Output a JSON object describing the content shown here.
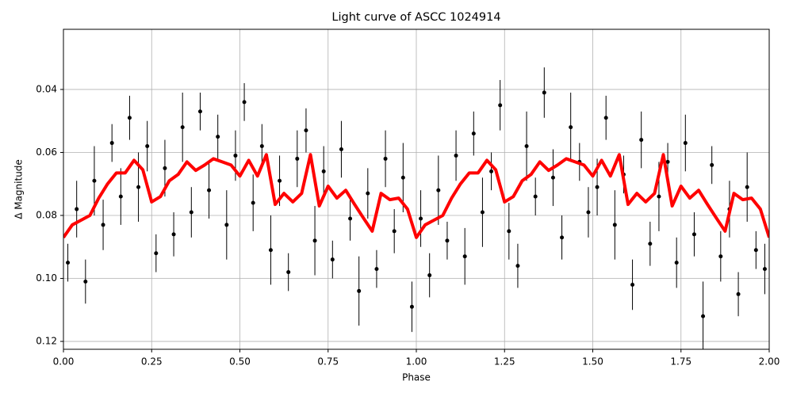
{
  "chart_data": {
    "type": "scatter",
    "title": "Light curve of ASCC 1024914",
    "xlabel": "Phase",
    "ylabel": "Δ Magnitude",
    "xlim": [
      0,
      2
    ],
    "ylim": [
      0.1225,
      0.0209
    ],
    "xticks": [
      {
        "value": 0,
        "label": "0.00"
      },
      {
        "value": 0.25,
        "label": "0.25"
      },
      {
        "value": 0.5,
        "label": "0.50"
      },
      {
        "value": 0.75,
        "label": "0.75"
      },
      {
        "value": 1,
        "label": "1.00"
      },
      {
        "value": 1.25,
        "label": "1.25"
      },
      {
        "value": 1.5,
        "label": "1.50"
      },
      {
        "value": 1.75,
        "label": "1.75"
      },
      {
        "value": 2,
        "label": "2.00"
      }
    ],
    "yticks": [
      0.04,
      0.06,
      {
        "value": 0.08,
        "label": "0.08"
      },
      {
        "value": 0.1,
        "label": "0.10"
      },
      0.12
    ],
    "grid": true,
    "points": {
      "color": "#000000",
      "x": [
        0.0125,
        0.0375,
        0.0625,
        0.0875,
        0.1125,
        0.1375,
        0.1625,
        0.1875,
        0.2125,
        0.2375,
        0.2625,
        0.2875,
        0.3125,
        0.3375,
        0.3625,
        0.3875,
        0.4125,
        0.4375,
        0.4625,
        0.4875,
        0.5125,
        0.5375,
        0.5625,
        0.5875,
        0.6125,
        0.6375,
        0.6625,
        0.6875,
        0.7125,
        0.7375,
        0.7625,
        0.7875,
        0.8125,
        0.8375,
        0.8625,
        0.8875,
        0.9125,
        0.9375,
        0.9625,
        0.9875,
        1.0125,
        1.0375,
        1.0625,
        1.0875,
        1.1125,
        1.1375,
        1.1625,
        1.1875,
        1.2125,
        1.2375,
        1.2625,
        1.2875,
        1.3125,
        1.3375,
        1.3625,
        1.3875,
        1.4125,
        1.4375,
        1.4625,
        1.4875,
        1.5125,
        1.5375,
        1.5625,
        1.5875,
        1.6125,
        1.6375,
        1.6625,
        1.6875,
        1.7125,
        1.7375,
        1.7625,
        1.7875,
        1.8125,
        1.8375,
        1.8625,
        1.8875,
        1.9125,
        1.9375,
        1.9625,
        1.9875
      ],
      "values": [
        0.095,
        0.078,
        0.101,
        0.069,
        0.083,
        0.057,
        0.074,
        0.049,
        0.071,
        0.058,
        0.092,
        0.065,
        0.086,
        0.052,
        0.079,
        0.047,
        0.072,
        0.055,
        0.083,
        0.061,
        0.044,
        0.076,
        0.058,
        0.091,
        0.069,
        0.098,
        0.062,
        0.053,
        0.088,
        0.066,
        0.094,
        0.059,
        0.081,
        0.104,
        0.073,
        0.097,
        0.062,
        0.085,
        0.068,
        0.109,
        0.081,
        0.099,
        0.072,
        0.088,
        0.061,
        0.093,
        0.054,
        0.079,
        0.066,
        0.045,
        0.085,
        0.096,
        0.058,
        0.074,
        0.041,
        0.068,
        0.087,
        0.052,
        0.063,
        0.079,
        0.071,
        0.049,
        0.083,
        0.067,
        0.102,
        0.056,
        0.089,
        0.074,
        0.063,
        0.095,
        0.057,
        0.086,
        0.112,
        0.064,
        0.093,
        0.078,
        0.105,
        0.071,
        0.091,
        0.097
      ],
      "errors": [
        0.006,
        0.009,
        0.007,
        0.011,
        0.008,
        0.006,
        0.009,
        0.007,
        0.011,
        0.008,
        0.006,
        0.009,
        0.007,
        0.011,
        0.008,
        0.006,
        0.009,
        0.007,
        0.011,
        0.008,
        0.006,
        0.009,
        0.007,
        0.011,
        0.008,
        0.006,
        0.009,
        0.007,
        0.011,
        0.008,
        0.006,
        0.009,
        0.007,
        0.011,
        0.008,
        0.006,
        0.009,
        0.007,
        0.011,
        0.008,
        0.009,
        0.007,
        0.011,
        0.006,
        0.008,
        0.009,
        0.007,
        0.011,
        0.006,
        0.008,
        0.009,
        0.007,
        0.011,
        0.006,
        0.008,
        0.009,
        0.007,
        0.011,
        0.006,
        0.008,
        0.009,
        0.007,
        0.011,
        0.006,
        0.008,
        0.009,
        0.007,
        0.011,
        0.006,
        0.008,
        0.009,
        0.007,
        0.011,
        0.006,
        0.008,
        0.009,
        0.007,
        0.011,
        0.006,
        0.008
      ]
    },
    "curve": {
      "color": "#ff0000",
      "x": [
        0,
        0.025,
        0.05,
        0.075,
        0.1,
        0.125,
        0.15,
        0.175,
        0.2,
        0.225,
        0.25,
        0.275,
        0.3,
        0.325,
        0.35,
        0.375,
        0.4,
        0.425,
        0.45,
        0.475,
        0.5,
        0.525,
        0.55,
        0.575,
        0.6,
        0.625,
        0.65,
        0.675,
        0.7,
        0.725,
        0.75,
        0.775,
        0.8,
        0.825,
        0.85,
        0.875,
        0.9,
        0.925,
        0.95,
        0.975,
        1,
        1.025,
        1.05,
        1.075,
        1.1,
        1.125,
        1.15,
        1.175,
        1.2,
        1.225,
        1.25,
        1.275,
        1.3,
        1.325,
        1.35,
        1.375,
        1.4,
        1.425,
        1.45,
        1.475,
        1.5,
        1.525,
        1.55,
        1.575,
        1.6,
        1.625,
        1.65,
        1.675,
        1.7,
        1.725,
        1.75,
        1.775,
        1.8,
        1.825,
        1.85,
        1.875,
        1.9,
        1.925,
        1.95,
        1.975,
        2
      ],
      "values": [
        0.087,
        0.083,
        0.0815,
        0.08,
        0.0745,
        0.07,
        0.0665,
        0.0665,
        0.0625,
        0.0655,
        0.0757,
        0.074,
        0.069,
        0.067,
        0.063,
        0.0657,
        0.064,
        0.062,
        0.063,
        0.064,
        0.0675,
        0.0625,
        0.0675,
        0.0607,
        0.0765,
        0.073,
        0.0757,
        0.073,
        0.0607,
        0.077,
        0.0707,
        0.0745,
        0.072,
        0.0765,
        0.0808,
        0.085,
        0.073,
        0.075,
        0.0745,
        0.078,
        0.087,
        0.083,
        0.0815,
        0.08,
        0.0745,
        0.07,
        0.0665,
        0.0665,
        0.0625,
        0.0655,
        0.0757,
        0.074,
        0.069,
        0.067,
        0.063,
        0.0657,
        0.064,
        0.062,
        0.063,
        0.064,
        0.0675,
        0.0625,
        0.0675,
        0.0607,
        0.0765,
        0.073,
        0.0757,
        0.073,
        0.0607,
        0.077,
        0.0707,
        0.0745,
        0.072,
        0.0765,
        0.0808,
        0.085,
        0.073,
        0.075,
        0.0745,
        0.078,
        0.087
      ]
    }
  }
}
